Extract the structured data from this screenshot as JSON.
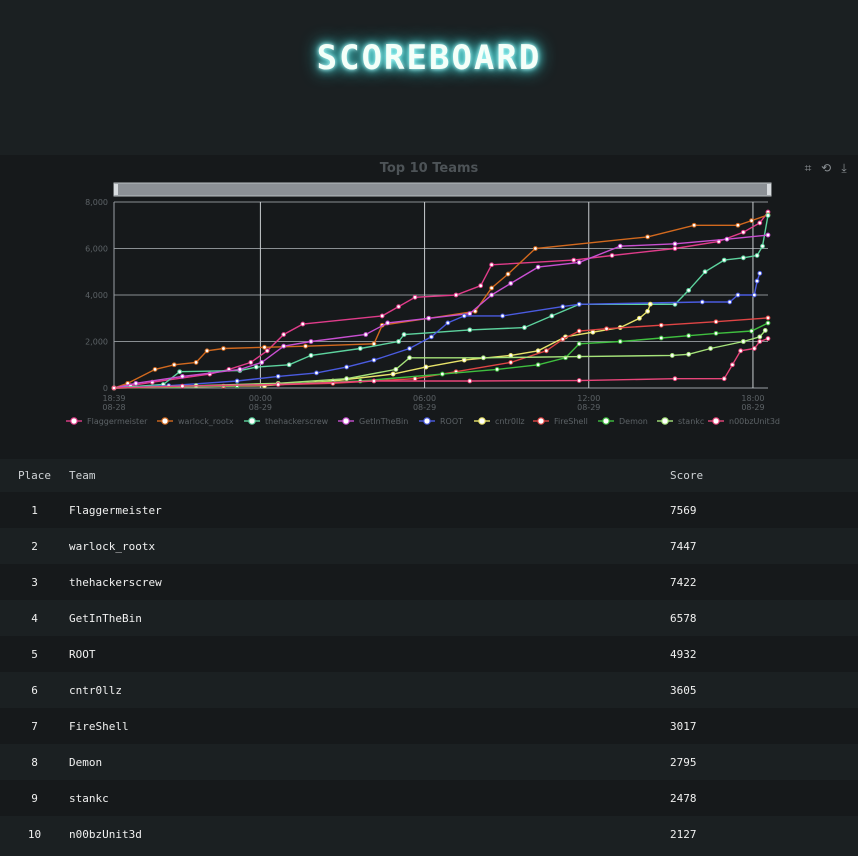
{
  "header": {
    "title": "SCOREBOARD"
  },
  "chart_data": {
    "type": "line",
    "title": "Top 10 Teams",
    "x_ticks": [
      {
        "time": "18:39",
        "date": "08-28"
      },
      {
        "time": "00:00",
        "date": "08-29"
      },
      {
        "time": "06:00",
        "date": "08-29"
      },
      {
        "time": "12:00",
        "date": "08-29"
      },
      {
        "time": "18:00",
        "date": "08-29"
      }
    ],
    "x_tick_hours": [
      0,
      5.35,
      11.35,
      17.35,
      23.35
    ],
    "x_range_hours": [
      0,
      23.9
    ],
    "y_ticks": [
      "0",
      "2,000",
      "4,000",
      "6,000",
      "8,000"
    ],
    "ylim": [
      0,
      8000
    ],
    "grid": true,
    "legend_position": "bottom",
    "series": [
      {
        "name": "Flaggermeister",
        "color": "#e03c8a",
        "points": [
          [
            0,
            0
          ],
          [
            0.6,
            100
          ],
          [
            1.4,
            250
          ],
          [
            3.5,
            600
          ],
          [
            4.2,
            800
          ],
          [
            5.0,
            1100
          ],
          [
            5.6,
            1600
          ],
          [
            6.2,
            2300
          ],
          [
            6.9,
            2750
          ],
          [
            9.8,
            3100
          ],
          [
            10.4,
            3500
          ],
          [
            11.0,
            3900
          ],
          [
            12.5,
            4000
          ],
          [
            13.4,
            4400
          ],
          [
            13.8,
            5300
          ],
          [
            16.8,
            5500
          ],
          [
            18.2,
            5700
          ],
          [
            20.5,
            6000
          ],
          [
            22.1,
            6300
          ],
          [
            23.0,
            6700
          ],
          [
            23.6,
            7100
          ],
          [
            23.9,
            7569
          ]
        ]
      },
      {
        "name": "warlock_rootx",
        "color": "#d2691e",
        "points": [
          [
            0,
            0
          ],
          [
            0.5,
            200
          ],
          [
            1.5,
            800
          ],
          [
            2.2,
            1000
          ],
          [
            3.0,
            1100
          ],
          [
            3.4,
            1600
          ],
          [
            4.0,
            1700
          ],
          [
            5.5,
            1750
          ],
          [
            7.0,
            1800
          ],
          [
            9.5,
            1900
          ],
          [
            9.8,
            2700
          ],
          [
            11.5,
            3000
          ],
          [
            13.2,
            3300
          ],
          [
            13.8,
            4300
          ],
          [
            14.4,
            4900
          ],
          [
            15.4,
            6000
          ],
          [
            19.5,
            6500
          ],
          [
            21.2,
            7000
          ],
          [
            22.8,
            7000
          ],
          [
            23.3,
            7200
          ],
          [
            23.9,
            7447
          ]
        ]
      },
      {
        "name": "thehackerscrew",
        "color": "#5dd39e",
        "points": [
          [
            0,
            0
          ],
          [
            1.8,
            150
          ],
          [
            2.4,
            700
          ],
          [
            4.6,
            750
          ],
          [
            5.2,
            900
          ],
          [
            6.4,
            1000
          ],
          [
            7.2,
            1400
          ],
          [
            9.0,
            1700
          ],
          [
            10.4,
            2000
          ],
          [
            10.6,
            2300
          ],
          [
            13.0,
            2500
          ],
          [
            15.0,
            2600
          ],
          [
            16.0,
            3100
          ],
          [
            17.0,
            3600
          ],
          [
            20.5,
            3600
          ],
          [
            21.0,
            4200
          ],
          [
            21.6,
            5000
          ],
          [
            22.3,
            5500
          ],
          [
            23.0,
            5600
          ],
          [
            23.5,
            5700
          ],
          [
            23.7,
            6100
          ],
          [
            23.9,
            7422
          ]
        ]
      },
      {
        "name": "GetInTheBin",
        "color": "#c84fd1",
        "points": [
          [
            0,
            0
          ],
          [
            0.8,
            200
          ],
          [
            2.5,
            500
          ],
          [
            4.6,
            800
          ],
          [
            5.4,
            1100
          ],
          [
            6.2,
            1800
          ],
          [
            7.2,
            2000
          ],
          [
            9.2,
            2300
          ],
          [
            10.0,
            2800
          ],
          [
            11.5,
            3000
          ],
          [
            13.0,
            3200
          ],
          [
            13.8,
            4000
          ],
          [
            14.5,
            4500
          ],
          [
            15.5,
            5200
          ],
          [
            17.0,
            5400
          ],
          [
            18.5,
            6100
          ],
          [
            20.5,
            6200
          ],
          [
            22.4,
            6400
          ],
          [
            23.9,
            6578
          ]
        ]
      },
      {
        "name": "ROOT",
        "color": "#4a5be0",
        "points": [
          [
            0,
            0
          ],
          [
            2.0,
            100
          ],
          [
            4.5,
            300
          ],
          [
            6.0,
            500
          ],
          [
            7.4,
            650
          ],
          [
            8.5,
            900
          ],
          [
            9.5,
            1200
          ],
          [
            10.8,
            1700
          ],
          [
            11.6,
            2200
          ],
          [
            12.2,
            2800
          ],
          [
            12.8,
            3100
          ],
          [
            14.2,
            3100
          ],
          [
            16.4,
            3500
          ],
          [
            17.0,
            3600
          ],
          [
            21.5,
            3700
          ],
          [
            22.5,
            3700
          ],
          [
            22.8,
            4000
          ],
          [
            23.4,
            4000
          ],
          [
            23.5,
            4600
          ],
          [
            23.6,
            4932
          ]
        ]
      },
      {
        "name": "cntr0llz",
        "color": "#e8e36a",
        "points": [
          [
            0,
            0
          ],
          [
            5.5,
            100
          ],
          [
            8.0,
            300
          ],
          [
            10.2,
            600
          ],
          [
            11.4,
            900
          ],
          [
            12.8,
            1200
          ],
          [
            14.5,
            1400
          ],
          [
            15.5,
            1600
          ],
          [
            16.5,
            2200
          ],
          [
            17.5,
            2400
          ],
          [
            18.5,
            2600
          ],
          [
            19.2,
            3000
          ],
          [
            19.5,
            3300
          ],
          [
            19.6,
            3605
          ]
        ]
      },
      {
        "name": "FireShell",
        "color": "#e04545",
        "points": [
          [
            0,
            0
          ],
          [
            4.0,
            80
          ],
          [
            8.0,
            200
          ],
          [
            11.0,
            400
          ],
          [
            12.5,
            700
          ],
          [
            14.5,
            1100
          ],
          [
            15.8,
            1600
          ],
          [
            16.4,
            2100
          ],
          [
            17.0,
            2450
          ],
          [
            18.0,
            2550
          ],
          [
            20.0,
            2700
          ],
          [
            22.0,
            2850
          ],
          [
            23.9,
            3017
          ]
        ]
      },
      {
        "name": "Demon",
        "color": "#3fbf3f",
        "points": [
          [
            0,
            0
          ],
          [
            4.5,
            100
          ],
          [
            9.0,
            300
          ],
          [
            12.0,
            600
          ],
          [
            14.0,
            800
          ],
          [
            15.5,
            1000
          ],
          [
            16.5,
            1300
          ],
          [
            17.0,
            1900
          ],
          [
            18.5,
            2000
          ],
          [
            20.0,
            2150
          ],
          [
            21.0,
            2250
          ],
          [
            22.0,
            2350
          ],
          [
            23.3,
            2450
          ],
          [
            23.9,
            2795
          ]
        ]
      },
      {
        "name": "stankc",
        "color": "#a6e37a",
        "points": [
          [
            0,
            0
          ],
          [
            3.0,
            100
          ],
          [
            6.0,
            200
          ],
          [
            8.5,
            400
          ],
          [
            10.3,
            800
          ],
          [
            10.8,
            1300
          ],
          [
            13.5,
            1300
          ],
          [
            17.0,
            1350
          ],
          [
            20.4,
            1400
          ],
          [
            21.0,
            1450
          ],
          [
            21.8,
            1700
          ],
          [
            23.0,
            2000
          ],
          [
            23.6,
            2200
          ],
          [
            23.8,
            2478
          ]
        ]
      },
      {
        "name": "n00bzUnit3d",
        "color": "#e8457a",
        "points": [
          [
            0,
            0
          ],
          [
            2.5,
            80
          ],
          [
            6.0,
            150
          ],
          [
            9.5,
            300
          ],
          [
            13.0,
            300
          ],
          [
            17.0,
            320
          ],
          [
            20.5,
            400
          ],
          [
            22.3,
            400
          ],
          [
            22.6,
            1000
          ],
          [
            22.9,
            1600
          ],
          [
            23.4,
            1700
          ],
          [
            23.6,
            2000
          ],
          [
            23.9,
            2127
          ]
        ]
      }
    ]
  },
  "table": {
    "headers": {
      "place": "Place",
      "team": "Team",
      "score": "Score"
    },
    "rows": [
      {
        "place": "1",
        "team": "Flaggermeister",
        "score": "7569"
      },
      {
        "place": "2",
        "team": "warlock_rootx",
        "score": "7447"
      },
      {
        "place": "3",
        "team": "thehackerscrew",
        "score": "7422"
      },
      {
        "place": "4",
        "team": "GetInTheBin",
        "score": "6578"
      },
      {
        "place": "5",
        "team": "ROOT",
        "score": "4932"
      },
      {
        "place": "6",
        "team": "cntr0llz",
        "score": "3605"
      },
      {
        "place": "7",
        "team": "FireShell",
        "score": "3017"
      },
      {
        "place": "8",
        "team": "Demon",
        "score": "2795"
      },
      {
        "place": "9",
        "team": "stankc",
        "score": "2478"
      },
      {
        "place": "10",
        "team": "n00bzUnit3d",
        "score": "2127"
      }
    ]
  },
  "toolbox": {
    "zoom_icon": "zoom-icon",
    "restore_icon": "restore-icon",
    "save_icon": "download-icon"
  }
}
